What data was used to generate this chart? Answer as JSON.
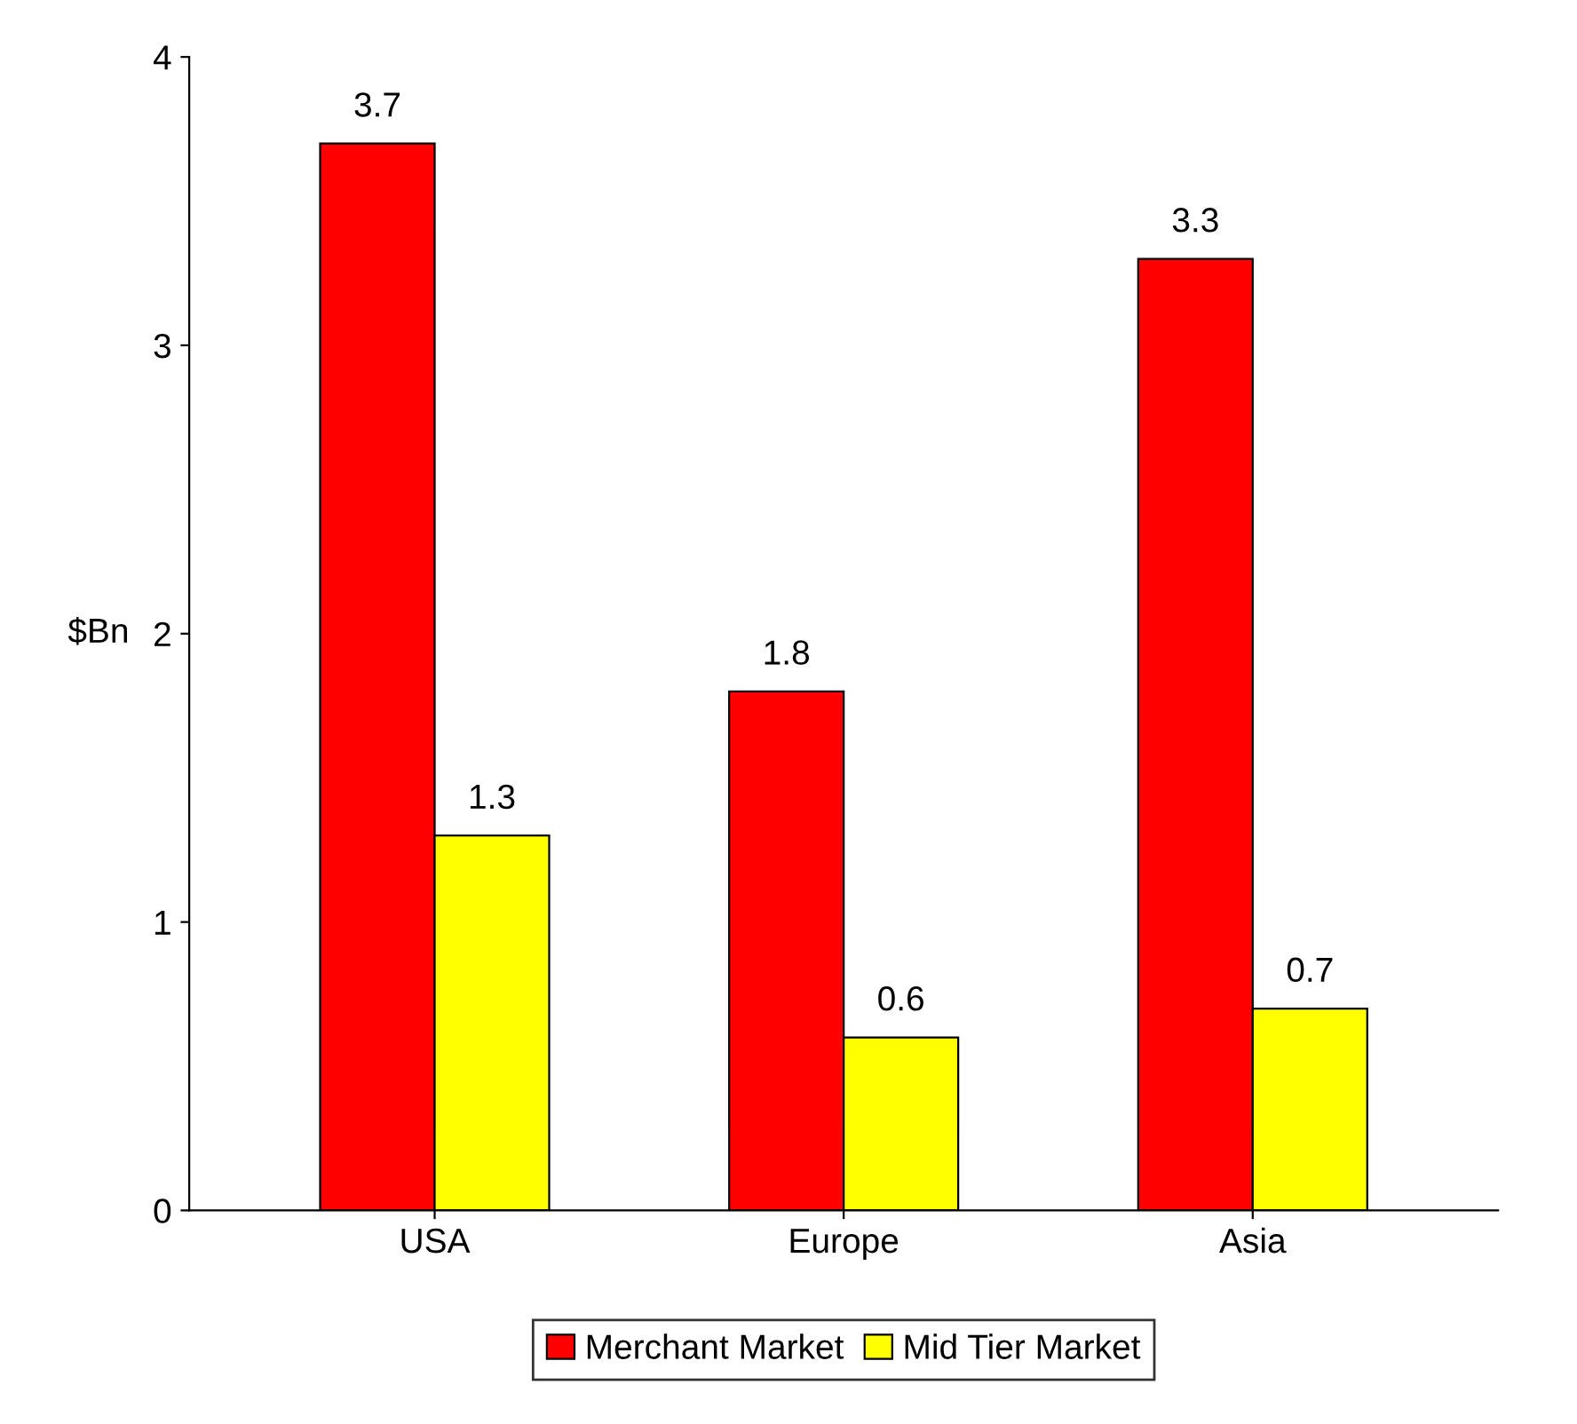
{
  "chart_data": {
    "type": "bar",
    "ylabel": "$Bn",
    "categories": [
      "USA",
      "Europe",
      "Asia"
    ],
    "series": [
      {
        "name": "Merchant Market",
        "color": "#ff0000",
        "values": [
          3.7,
          1.8,
          3.3
        ]
      },
      {
        "name": "Mid Tier Market",
        "color": "#ffff00",
        "values": [
          1.3,
          0.6,
          0.7
        ]
      }
    ],
    "ylim": [
      0,
      4
    ],
    "yticks": [
      0,
      1,
      2,
      3,
      4
    ],
    "grid": false,
    "legend": "bottom",
    "data_labels": true
  }
}
